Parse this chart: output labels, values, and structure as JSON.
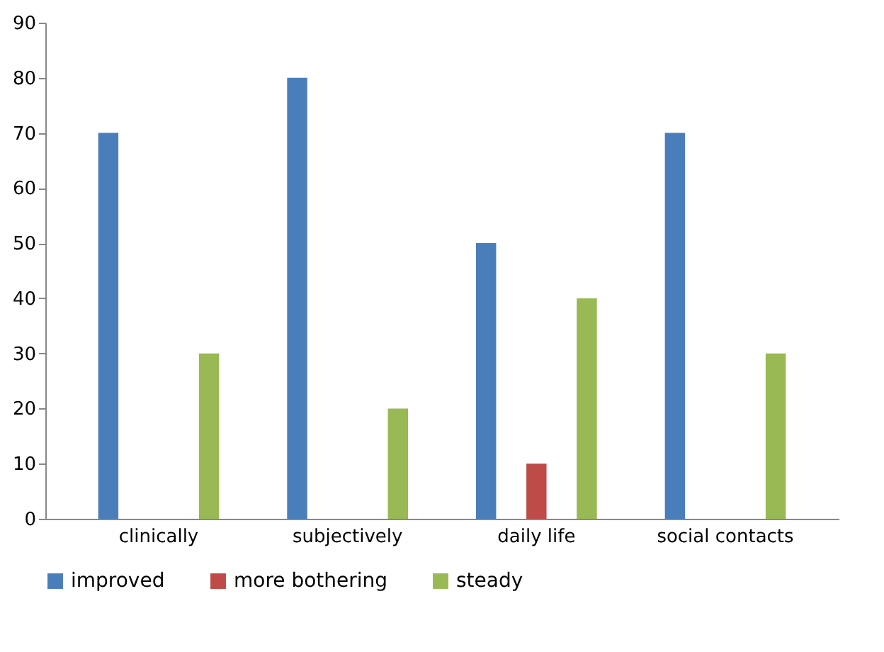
{
  "chart_data": {
    "type": "bar",
    "categories": [
      "clinically",
      "subjectively",
      "daily life",
      "social contacts"
    ],
    "series": [
      {
        "name": "improved",
        "color": "#4a7ebb",
        "values": [
          70,
          80,
          50,
          70
        ]
      },
      {
        "name": "more bothering",
        "color": "#be4b48",
        "values": [
          0,
          0,
          10,
          0
        ]
      },
      {
        "name": "steady",
        "color": "#98b954",
        "values": [
          30,
          20,
          40,
          30
        ]
      }
    ],
    "ylim": [
      0,
      90
    ],
    "yticks": [
      0,
      10,
      20,
      30,
      40,
      50,
      60,
      70,
      80,
      90
    ],
    "grid": false,
    "legend": "bottom"
  }
}
